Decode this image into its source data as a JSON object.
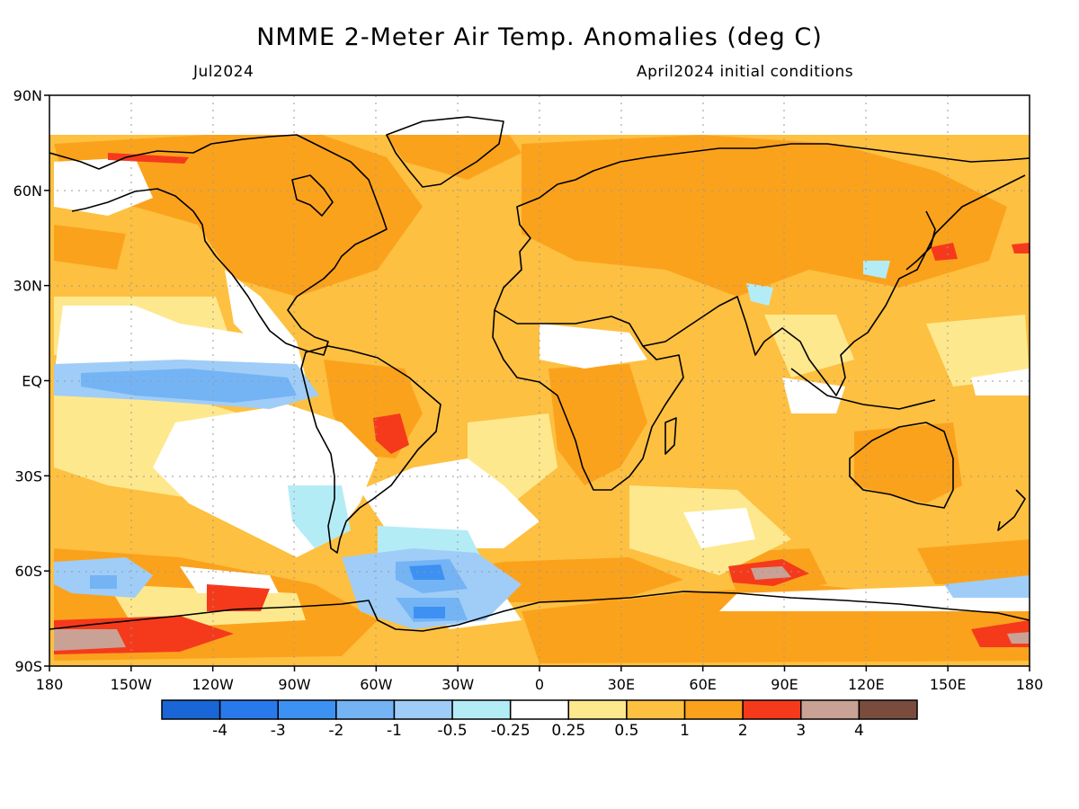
{
  "title": "NMME 2-Meter Air Temp. Anomalies (deg C)",
  "subtitle_left": "Jul2024",
  "subtitle_right": "April2024 initial conditions",
  "lat_labels": [
    "90N",
    "60N",
    "30N",
    "EQ",
    "30S",
    "60S",
    "90S"
  ],
  "lon_labels": [
    "180",
    "150W",
    "120W",
    "90W",
    "60W",
    "30W",
    "0",
    "30E",
    "60E",
    "90E",
    "120E",
    "150E",
    "180"
  ],
  "colorbar": {
    "colors": [
      "#1a66d6",
      "#2a79ec",
      "#3d91f2",
      "#74b4f5",
      "#9fcdf7",
      "#b4ecf6",
      "#ffffff",
      "#fee88e",
      "#fdc041",
      "#fba21c",
      "#f53a1c",
      "#c9a195",
      "#7a4c3e"
    ],
    "labels": [
      "-4",
      "-3",
      "-2",
      "-1",
      "-0.5",
      "-0.25",
      "0.25",
      "0.5",
      "1",
      "2",
      "3",
      "4"
    ]
  },
  "colors": {
    "base": "#fdc041",
    "strong_warm": "#fba21c",
    "mild_warm": "#fee88e",
    "neutral": "#ffffff",
    "cool_1": "#b4ecf6",
    "cool_2": "#9fcdf7",
    "cool_3": "#74b4f5",
    "cool_4": "#3d91f2",
    "hot": "#f53a1c",
    "very_hot": "#c9a195",
    "coast": "#000000"
  }
}
